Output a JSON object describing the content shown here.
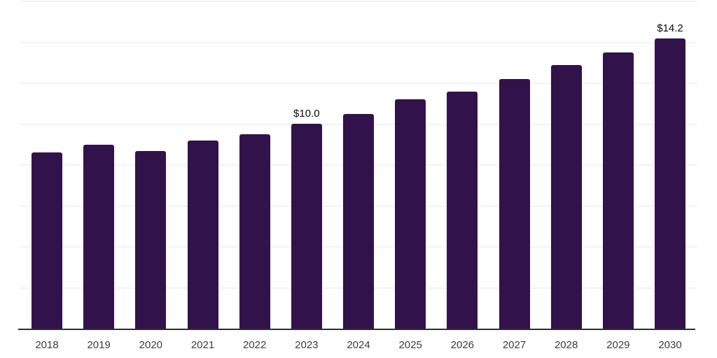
{
  "chart_data": {
    "type": "bar",
    "categories": [
      "2018",
      "2019",
      "2020",
      "2021",
      "2022",
      "2023",
      "2024",
      "2025",
      "2026",
      "2027",
      "2028",
      "2029",
      "2030"
    ],
    "values": [
      8.6,
      9.0,
      8.7,
      9.2,
      9.5,
      10.0,
      10.5,
      11.2,
      11.6,
      12.2,
      12.9,
      13.5,
      14.2
    ],
    "title": "",
    "xlabel": "",
    "ylabel": "",
    "ylim": [
      0,
      16
    ],
    "gridline_step": 2,
    "grid": true,
    "legend": "none",
    "annotations": [
      {
        "category": "2023",
        "text": "$10.0"
      },
      {
        "category": "2030",
        "text": "$14.2"
      }
    ]
  },
  "colors": {
    "background": "#ffffff",
    "bar": "#32124B",
    "gridline": "#f3f3f3",
    "axis_line": "#2f2f2f",
    "tick_label": "#3d3d3d",
    "annotation": "#0a0a0a"
  }
}
